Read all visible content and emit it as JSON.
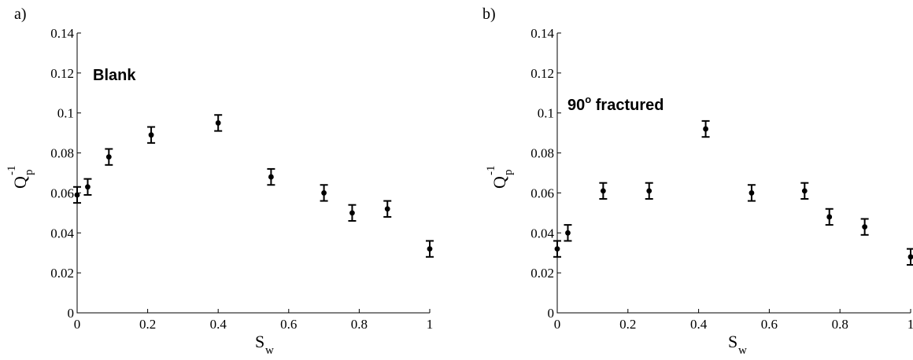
{
  "chart_data": [
    {
      "type": "scatter",
      "panel_label": "a)",
      "annotation": "Blank",
      "xlabel": {
        "main": "S",
        "sub": "w"
      },
      "ylabel": {
        "main": "Q",
        "sub": "p",
        "sup": "-1"
      },
      "xlim": [
        0,
        1
      ],
      "ylim": [
        0,
        0.14
      ],
      "xticks": [
        "0",
        "0.2",
        "0.4",
        "0.6",
        "0.8",
        "1"
      ],
      "yticks": [
        "0",
        "0.02",
        "0.04",
        "0.06",
        "0.08",
        "0.1",
        "0.12",
        "0.14"
      ],
      "points": [
        {
          "x": 0.0,
          "y": 0.059,
          "err": 0.004
        },
        {
          "x": 0.03,
          "y": 0.063,
          "err": 0.004
        },
        {
          "x": 0.09,
          "y": 0.078,
          "err": 0.004
        },
        {
          "x": 0.21,
          "y": 0.089,
          "err": 0.004
        },
        {
          "x": 0.4,
          "y": 0.095,
          "err": 0.004
        },
        {
          "x": 0.55,
          "y": 0.068,
          "err": 0.004
        },
        {
          "x": 0.7,
          "y": 0.06,
          "err": 0.004
        },
        {
          "x": 0.78,
          "y": 0.05,
          "err": 0.004
        },
        {
          "x": 0.88,
          "y": 0.052,
          "err": 0.004
        },
        {
          "x": 1.0,
          "y": 0.032,
          "err": 0.004
        }
      ]
    },
    {
      "type": "scatter",
      "panel_label": "b)",
      "annotation": "90",
      "annotation_sup": "o",
      "annotation_rest": " fractured",
      "xlabel": {
        "main": "S",
        "sub": "w"
      },
      "ylabel": {
        "main": "Q",
        "sub": "p",
        "sup": "-1"
      },
      "xlim": [
        0,
        1
      ],
      "ylim": [
        0,
        0.14
      ],
      "xticks": [
        "0",
        "0.2",
        "0.4",
        "0.6",
        "0.8",
        "1"
      ],
      "yticks": [
        "0",
        "0.02",
        "0.04",
        "0.06",
        "0.08",
        "0.1",
        "0.12",
        "0.14"
      ],
      "points": [
        {
          "x": 0.0,
          "y": 0.032,
          "err": 0.004
        },
        {
          "x": 0.03,
          "y": 0.04,
          "err": 0.004
        },
        {
          "x": 0.13,
          "y": 0.061,
          "err": 0.004
        },
        {
          "x": 0.26,
          "y": 0.061,
          "err": 0.004
        },
        {
          "x": 0.42,
          "y": 0.092,
          "err": 0.004
        },
        {
          "x": 0.55,
          "y": 0.06,
          "err": 0.004
        },
        {
          "x": 0.7,
          "y": 0.061,
          "err": 0.004
        },
        {
          "x": 0.77,
          "y": 0.048,
          "err": 0.004
        },
        {
          "x": 0.87,
          "y": 0.043,
          "err": 0.004
        },
        {
          "x": 1.0,
          "y": 0.028,
          "err": 0.004
        }
      ]
    }
  ]
}
